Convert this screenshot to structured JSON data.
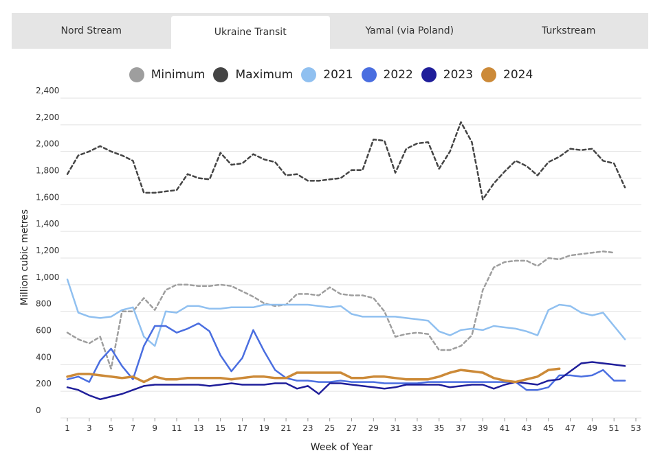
{
  "tabs": [
    {
      "label": "Nord Stream"
    },
    {
      "label": "Ukraine Transit"
    },
    {
      "label": "Yamal (via Poland)"
    },
    {
      "label": "Turkstream"
    }
  ],
  "active_tab": 1,
  "chart_data": {
    "type": "line",
    "xlabel": "Week of Year",
    "ylabel": "Million cubic metres",
    "xlim": [
      1,
      53
    ],
    "ylim": [
      0,
      2400
    ],
    "x_ticks": [
      1,
      3,
      5,
      7,
      9,
      11,
      13,
      15,
      17,
      19,
      21,
      23,
      25,
      27,
      29,
      31,
      33,
      35,
      37,
      39,
      41,
      43,
      45,
      47,
      49,
      51,
      53
    ],
    "y_ticks": [
      0,
      200,
      400,
      600,
      800,
      1000,
      1200,
      1400,
      1600,
      1800,
      2000,
      2200,
      2400
    ],
    "y_tick_labels": [
      "0",
      "200",
      "400",
      "600",
      "800",
      "1,000",
      "1,200",
      "1,400",
      "1,600",
      "1,800",
      "2,000",
      "2,200",
      "2,400"
    ],
    "grid": true,
    "legend_position": "top",
    "series": [
      {
        "name": "Minimum",
        "color": "#9e9e9e",
        "dashed": true,
        "width": 2.5,
        "values": [
          640,
          590,
          560,
          610,
          370,
          800,
          800,
          900,
          810,
          960,
          1000,
          1000,
          990,
          990,
          1000,
          990,
          950,
          910,
          860,
          840,
          850,
          930,
          930,
          920,
          980,
          930,
          920,
          920,
          900,
          800,
          610,
          630,
          640,
          630,
          510,
          510,
          540,
          620,
          960,
          1130,
          1170,
          1180,
          1180,
          1140,
          1200,
          1190,
          1220,
          1230,
          1240,
          1250,
          1240,
          null
        ]
      },
      {
        "name": "Maximum",
        "color": "#444444",
        "dashed": true,
        "width": 2.5,
        "values": [
          1830,
          1970,
          2000,
          2040,
          2000,
          1970,
          1930,
          1690,
          1690,
          1700,
          1710,
          1830,
          1800,
          1790,
          1990,
          1900,
          1910,
          1980,
          1940,
          1920,
          1820,
          1830,
          1780,
          1780,
          1790,
          1800,
          1860,
          1860,
          2090,
          2080,
          1840,
          2020,
          2060,
          2070,
          1870,
          2000,
          2220,
          2070,
          1640,
          1760,
          1850,
          1930,
          1890,
          1820,
          1920,
          1960,
          2020,
          2010,
          2020,
          1930,
          1910,
          1730,
          null
        ]
      },
      {
        "name": "2021",
        "color": "#90c0f0",
        "dashed": false,
        "width": 2.5,
        "values": [
          1040,
          790,
          760,
          750,
          760,
          810,
          830,
          610,
          540,
          800,
          790,
          840,
          840,
          820,
          820,
          830,
          830,
          830,
          850,
          850,
          850,
          850,
          850,
          840,
          830,
          840,
          780,
          760,
          760,
          760,
          760,
          750,
          740,
          730,
          650,
          620,
          660,
          670,
          660,
          690,
          680,
          670,
          650,
          620,
          810,
          850,
          840,
          790,
          770,
          790,
          690,
          590,
          null
        ]
      },
      {
        "name": "2022",
        "color": "#4a6ee0",
        "dashed": false,
        "width": 2.5,
        "values": [
          290,
          310,
          270,
          430,
          520,
          390,
          290,
          540,
          690,
          690,
          640,
          670,
          710,
          650,
          470,
          350,
          450,
          660,
          500,
          360,
          300,
          280,
          280,
          270,
          270,
          280,
          270,
          270,
          270,
          260,
          260,
          260,
          260,
          270,
          270,
          270,
          270,
          270,
          270,
          270,
          270,
          270,
          210,
          210,
          230,
          320,
          320,
          310,
          320,
          360,
          280,
          280,
          null
        ]
      },
      {
        "name": "2023",
        "color": "#1f1e9a",
        "dashed": false,
        "width": 2.5,
        "values": [
          230,
          210,
          170,
          140,
          160,
          180,
          210,
          240,
          250,
          250,
          250,
          250,
          250,
          240,
          250,
          260,
          250,
          250,
          250,
          260,
          260,
          220,
          240,
          180,
          260,
          260,
          250,
          240,
          230,
          220,
          230,
          250,
          250,
          250,
          250,
          230,
          240,
          250,
          250,
          220,
          250,
          270,
          260,
          250,
          280,
          290,
          350,
          410,
          420,
          410,
          400,
          390,
          null
        ]
      },
      {
        "name": "2024",
        "color": "#cc8a38",
        "dashed": false,
        "width": 3.5,
        "values": [
          310,
          330,
          330,
          320,
          310,
          300,
          310,
          270,
          310,
          290,
          290,
          300,
          300,
          300,
          300,
          290,
          300,
          310,
          310,
          300,
          300,
          340,
          340,
          340,
          340,
          340,
          300,
          300,
          310,
          310,
          300,
          290,
          290,
          290,
          310,
          340,
          360,
          350,
          340,
          300,
          280,
          270,
          290,
          310,
          360,
          370,
          null,
          null,
          null,
          null,
          null,
          null,
          null
        ]
      }
    ]
  }
}
